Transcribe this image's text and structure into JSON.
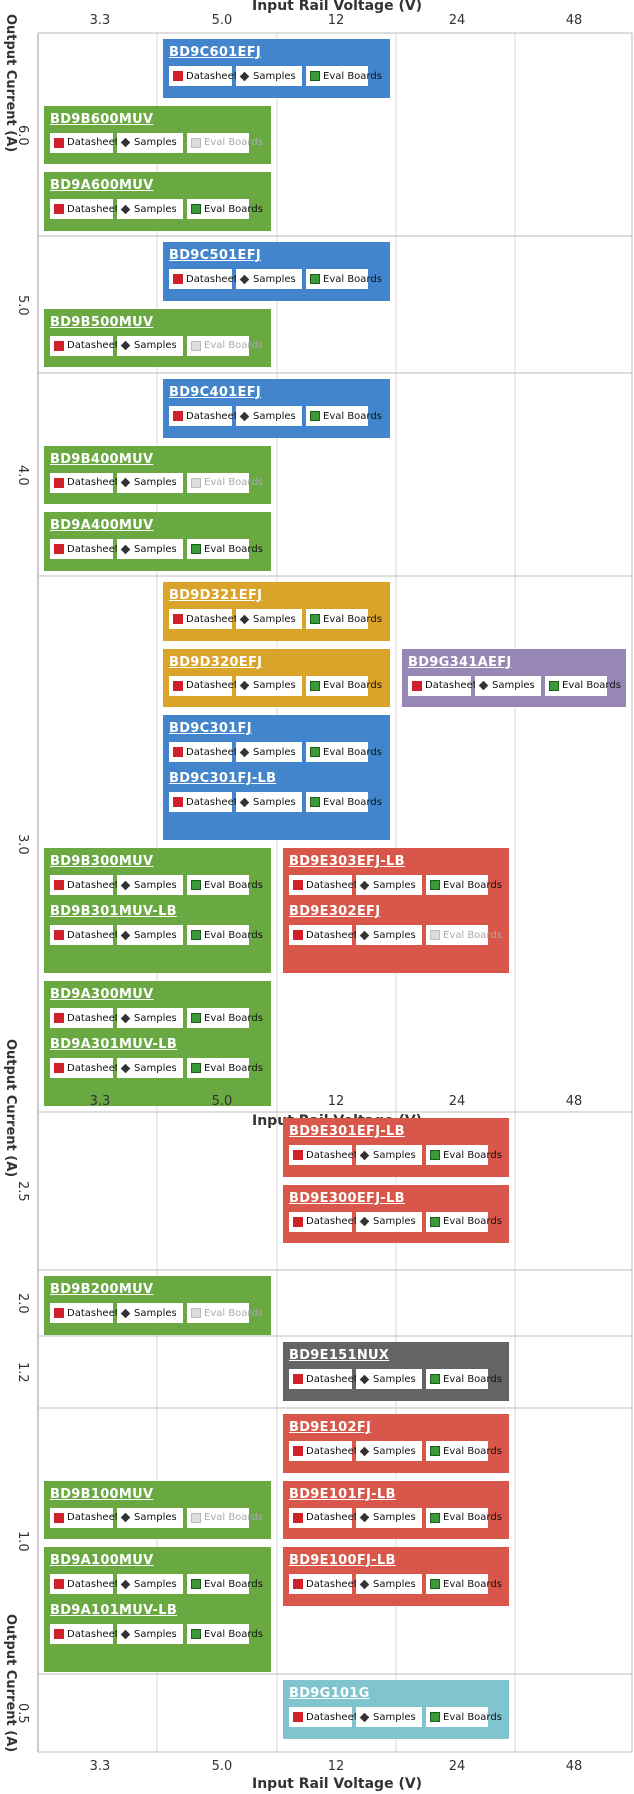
{
  "chart_data": {
    "type": "table",
    "xlabel": "Input Rail Voltage (V)",
    "ylabel": "Output Current (A)",
    "x_ticks": [
      "3.3",
      "5.0",
      "12",
      "24",
      "48"
    ],
    "button_labels": {
      "datasheet": "Datasheet",
      "samples": "Samples",
      "eval": "Eval Boards"
    },
    "colors": {
      "green": "#6aa842",
      "blue": "#4285cc",
      "gold": "#daa32a",
      "red": "#d9574a",
      "purple": "#9787b5",
      "gray": "#646464",
      "teal": "#80c4d0"
    },
    "panel1_rows": [
      {
        "current": "6.0",
        "products": [
          {
            "name": "BD9C601EFJ",
            "color": "blue",
            "col_from": 1,
            "col_to": 2,
            "slot": 0,
            "eval": true
          },
          {
            "name": "BD9B600MUV",
            "color": "green",
            "col_from": 0,
            "col_to": 1,
            "slot": 1,
            "eval": false
          },
          {
            "name": "BD9A600MUV",
            "color": "green",
            "col_from": 0,
            "col_to": 1,
            "slot": 2,
            "eval": true
          }
        ]
      },
      {
        "current": "5.0",
        "products": [
          {
            "name": "BD9C501EFJ",
            "color": "blue",
            "col_from": 1,
            "col_to": 2,
            "slot": 0,
            "eval": true
          },
          {
            "name": "BD9B500MUV",
            "color": "green",
            "col_from": 0,
            "col_to": 1,
            "slot": 1,
            "eval": false
          }
        ]
      },
      {
        "current": "4.0",
        "products": [
          {
            "name": "BD9C401EFJ",
            "color": "blue",
            "col_from": 1,
            "col_to": 2,
            "slot": 0,
            "eval": true
          },
          {
            "name": "BD9B400MUV",
            "color": "green",
            "col_from": 0,
            "col_to": 1,
            "slot": 1,
            "eval": false
          },
          {
            "name": "BD9A400MUV",
            "color": "green",
            "col_from": 0,
            "col_to": 1,
            "slot": 2,
            "eval": true
          }
        ]
      },
      {
        "current": "3.0",
        "products": [
          {
            "name": "BD9D321EFJ",
            "color": "gold",
            "col_from": 1,
            "col_to": 2,
            "slot": 0,
            "eval": true
          },
          {
            "name": "BD9D320EFJ",
            "color": "gold",
            "col_from": 1,
            "col_to": 2,
            "slot": 1,
            "eval": true
          },
          {
            "name": "BD9G341AEFJ",
            "color": "purple",
            "col_from": 3,
            "col_to": 4,
            "slot": 1,
            "eval": true
          },
          {
            "name": "BD9C301FJ",
            "color": "blue",
            "col_from": 1,
            "col_to": 2,
            "slot": 2,
            "eval": true,
            "group": "g1"
          },
          {
            "name": "BD9C301FJ-LB",
            "color": "blue",
            "col_from": 1,
            "col_to": 2,
            "slot": 3,
            "eval": true,
            "group": "g1"
          },
          {
            "name": "BD9B300MUV",
            "color": "green",
            "col_from": 0,
            "col_to": 1,
            "slot": 4,
            "eval": true,
            "group": "g2"
          },
          {
            "name": "BD9B301MUV-LB",
            "color": "green",
            "col_from": 0,
            "col_to": 1,
            "slot": 5,
            "eval": true,
            "group": "g2"
          },
          {
            "name": "BD9E303EFJ-LB",
            "color": "red",
            "col_from": 2,
            "col_to": 3,
            "slot": 4,
            "eval": true,
            "group": "g3"
          },
          {
            "name": "BD9E302EFJ",
            "color": "red",
            "col_from": 2,
            "col_to": 3,
            "slot": 5,
            "eval": false,
            "group": "g3"
          },
          {
            "name": "BD9A300MUV",
            "color": "green",
            "col_from": 0,
            "col_to": 1,
            "slot": 6,
            "eval": true,
            "group": "g4"
          },
          {
            "name": "BD9A301MUV-LB",
            "color": "green",
            "col_from": 0,
            "col_to": 1,
            "slot": 7,
            "eval": true,
            "group": "g4"
          }
        ]
      }
    ],
    "panel2_rows": [
      {
        "current": "2.5",
        "products": [
          {
            "name": "BD9E301EFJ-LB",
            "color": "red",
            "col_from": 2,
            "col_to": 3,
            "slot": 0,
            "eval": true
          },
          {
            "name": "BD9E300EFJ-LB",
            "color": "red",
            "col_from": 2,
            "col_to": 3,
            "slot": 1,
            "eval": true
          }
        ]
      },
      {
        "current": "2.0",
        "products": [
          {
            "name": "BD9B200MUV",
            "color": "green",
            "col_from": 0,
            "col_to": 1,
            "slot": 0,
            "eval": false
          }
        ]
      },
      {
        "current": "1.2",
        "products": [
          {
            "name": "BD9E151NUX",
            "color": "gray",
            "col_from": 2,
            "col_to": 3,
            "slot": 0,
            "eval": true
          }
        ]
      },
      {
        "current": "1.0",
        "products": [
          {
            "name": "BD9E102FJ",
            "color": "red",
            "col_from": 2,
            "col_to": 3,
            "slot": 0,
            "eval": true
          },
          {
            "name": "BD9B100MUV",
            "color": "green",
            "col_from": 0,
            "col_to": 1,
            "slot": 1,
            "eval": false
          },
          {
            "name": "BD9E101FJ-LB",
            "color": "red",
            "col_from": 2,
            "col_to": 3,
            "slot": 1,
            "eval": true
          },
          {
            "name": "BD9A100MUV",
            "color": "green",
            "col_from": 0,
            "col_to": 1,
            "slot": 2,
            "eval": true,
            "group": "g5"
          },
          {
            "name": "BD9A101MUV-LB",
            "color": "green",
            "col_from": 0,
            "col_to": 1,
            "slot": 3,
            "eval": true,
            "group": "g5"
          },
          {
            "name": "BD9E100FJ-LB",
            "color": "red",
            "col_from": 2,
            "col_to": 3,
            "slot": 2,
            "eval": true
          }
        ]
      },
      {
        "current": "0.5",
        "products": [
          {
            "name": "BD9G101G",
            "color": "teal",
            "col_from": 2,
            "col_to": 3,
            "slot": 0,
            "eval": true
          }
        ]
      }
    ]
  }
}
